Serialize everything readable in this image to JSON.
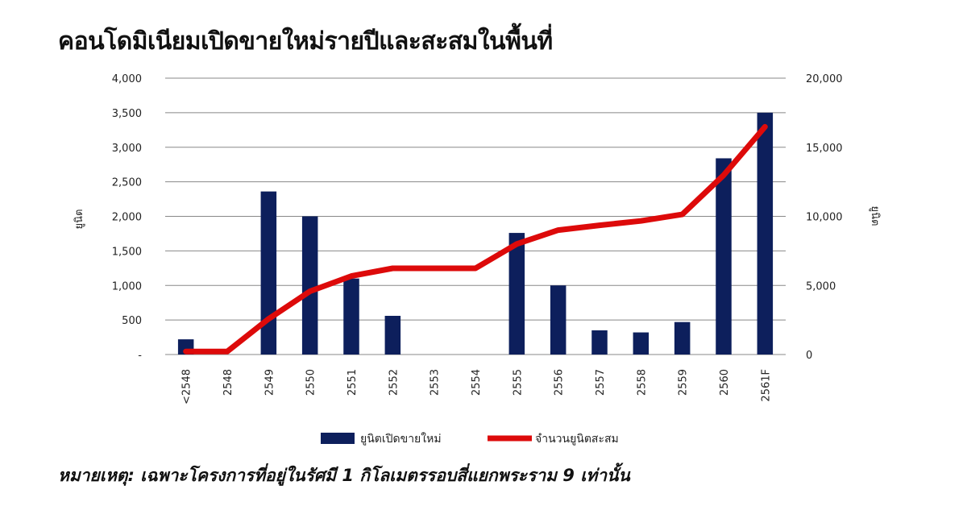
{
  "title": "คอนโดมิเนียมเปิดขายใหม่รายปีและสะสมในพื้นที่",
  "note": "หมายเหตุ: เฉพาะโครงการที่อยู่ในรัศมี 1 กิโลเมตรรอบสี่แยกพระราม 9 เท่านั้น",
  "colors": {
    "bar": "#0d1f5c",
    "line": "#dd0a0a",
    "grid": "#888888"
  },
  "chart_data": {
    "type": "bar+line",
    "categories": [
      "<2548",
      "2548",
      "2549",
      "2550",
      "2551",
      "2552",
      "2553",
      "2554",
      "2555",
      "2556",
      "2557",
      "2558",
      "2559",
      "2560",
      "2561F"
    ],
    "series": [
      {
        "name": "ยูนิตเปิดขายใหม่",
        "type": "bar",
        "axis": "left",
        "values": [
          220,
          0,
          2360,
          2000,
          1100,
          560,
          0,
          0,
          1760,
          1000,
          350,
          320,
          470,
          2840,
          3500
        ]
      },
      {
        "name": "จำนวนยูนิตสะสม",
        "type": "line",
        "axis": "right",
        "values": [
          220,
          220,
          2580,
          4580,
          5680,
          6240,
          6240,
          6240,
          8000,
          9000,
          9350,
          9670,
          10140,
          12980,
          16480
        ]
      }
    ],
    "ylabel": "ยูนิต",
    "y2label": "ยูนิต",
    "ylim": [
      0,
      4000
    ],
    "y2lim": [
      0,
      20000
    ],
    "yticks": [
      "-",
      "500",
      "1,000",
      "1,500",
      "2,000",
      "2,500",
      "3,000",
      "3,500",
      "4,000"
    ],
    "y2ticks": [
      "0",
      "5,000",
      "10,000",
      "15,000",
      "20,000"
    ],
    "grid": true,
    "legend": "bottom"
  }
}
